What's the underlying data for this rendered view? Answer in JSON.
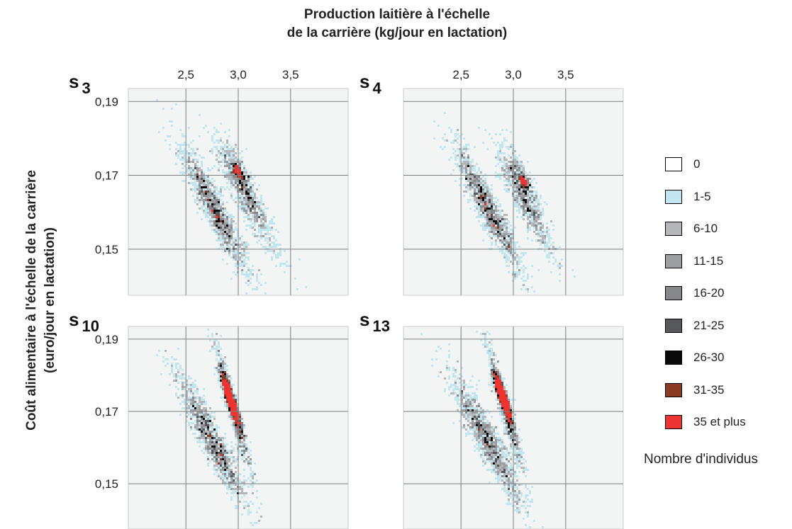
{
  "chart_data": {
    "type": "heatmap",
    "title": "Production laitière à l'échelle de la carrière (kg/jour en lactation)",
    "title_lines": [
      "Production laitière à l'échelle",
      "de la carrière (kg/jour en lactation)"
    ],
    "ylabel_lines": [
      "Coût alimentaire à l'échelle de la carrière",
      "(euro/jour en lactation)"
    ],
    "x_ticks": [
      {
        "value": 2.5,
        "label": "2,5"
      },
      {
        "value": 3.0,
        "label": "3,0"
      },
      {
        "value": 3.5,
        "label": "3,5"
      }
    ],
    "y_ticks": [
      {
        "value": 0.19,
        "label": "0,19"
      },
      {
        "value": 0.17,
        "label": "0,17"
      },
      {
        "value": 0.15,
        "label": "0,15"
      }
    ],
    "xlim": [
      1.95,
      4.05
    ],
    "ylim": [
      0.1375,
      0.1935
    ],
    "grid": true,
    "legend": {
      "title": "Nombre d'individus",
      "placement": "right",
      "entries": [
        {
          "label": "0",
          "color": "#ffffff"
        },
        {
          "label": "1-5",
          "color": "#c2e6ef"
        },
        {
          "label": "6-10",
          "color": "#b6b7ba"
        },
        {
          "label": "11-15",
          "color": "#9d9ea1"
        },
        {
          "label": "16-20",
          "color": "#86878a"
        },
        {
          "label": "21-25",
          "color": "#56585b"
        },
        {
          "label": "26-30",
          "color": "#0a0a0a"
        },
        {
          "label": "31-35",
          "color": "#8c3a22"
        },
        {
          "label": "35 et plus",
          "color": "#ee3430"
        }
      ]
    },
    "panels": [
      {
        "label": "s",
        "subscript": "3",
        "clusters": [
          {
            "x": 2.78,
            "y": 0.1605,
            "sx": 0.16,
            "sy": 0.0085,
            "rho": -0.93,
            "n": 1300
          },
          {
            "x": 3.02,
            "y": 0.17,
            "sx": 0.09,
            "sy": 0.005,
            "rho": -0.82,
            "n": 380
          },
          {
            "x": 3.08,
            "y": 0.164,
            "sx": 0.16,
            "sy": 0.008,
            "rho": -0.92,
            "n": 650
          }
        ],
        "core": {
          "x": 3.0,
          "y": 0.1712,
          "sx": 0.02,
          "sy": 0.0008,
          "rho": -0.6,
          "n": 6
        }
      },
      {
        "label": "s",
        "subscript": "4",
        "clusters": [
          {
            "x": 2.76,
            "y": 0.161,
            "sx": 0.16,
            "sy": 0.0085,
            "rho": -0.93,
            "n": 1300
          },
          {
            "x": 3.08,
            "y": 0.1685,
            "sx": 0.09,
            "sy": 0.005,
            "rho": -0.82,
            "n": 380
          },
          {
            "x": 3.12,
            "y": 0.162,
            "sx": 0.15,
            "sy": 0.0075,
            "rho": -0.92,
            "n": 600
          }
        ],
        "core": {
          "x": 3.1,
          "y": 0.1685,
          "sx": 0.02,
          "sy": 0.0008,
          "rho": -0.6,
          "n": 5
        }
      },
      {
        "label": "s",
        "subscript": "10",
        "clusters": [
          {
            "x": 2.75,
            "y": 0.162,
            "sx": 0.17,
            "sy": 0.009,
            "rho": -0.93,
            "n": 1300
          },
          {
            "x": 2.95,
            "y": 0.171,
            "sx": 0.09,
            "sy": 0.009,
            "rho": -0.95,
            "n": 700
          }
        ],
        "core": {
          "x": 2.93,
          "y": 0.173,
          "sx": 0.04,
          "sy": 0.0032,
          "rho": -0.9,
          "n": 45
        }
      },
      {
        "label": "s",
        "subscript": "13",
        "clusters": [
          {
            "x": 2.75,
            "y": 0.162,
            "sx": 0.17,
            "sy": 0.009,
            "rho": -0.93,
            "n": 1300
          },
          {
            "x": 2.92,
            "y": 0.171,
            "sx": 0.09,
            "sy": 0.009,
            "rho": -0.95,
            "n": 700
          }
        ],
        "core": {
          "x": 2.9,
          "y": 0.174,
          "sx": 0.04,
          "sy": 0.003,
          "rho": -0.9,
          "n": 45
        }
      }
    ]
  }
}
